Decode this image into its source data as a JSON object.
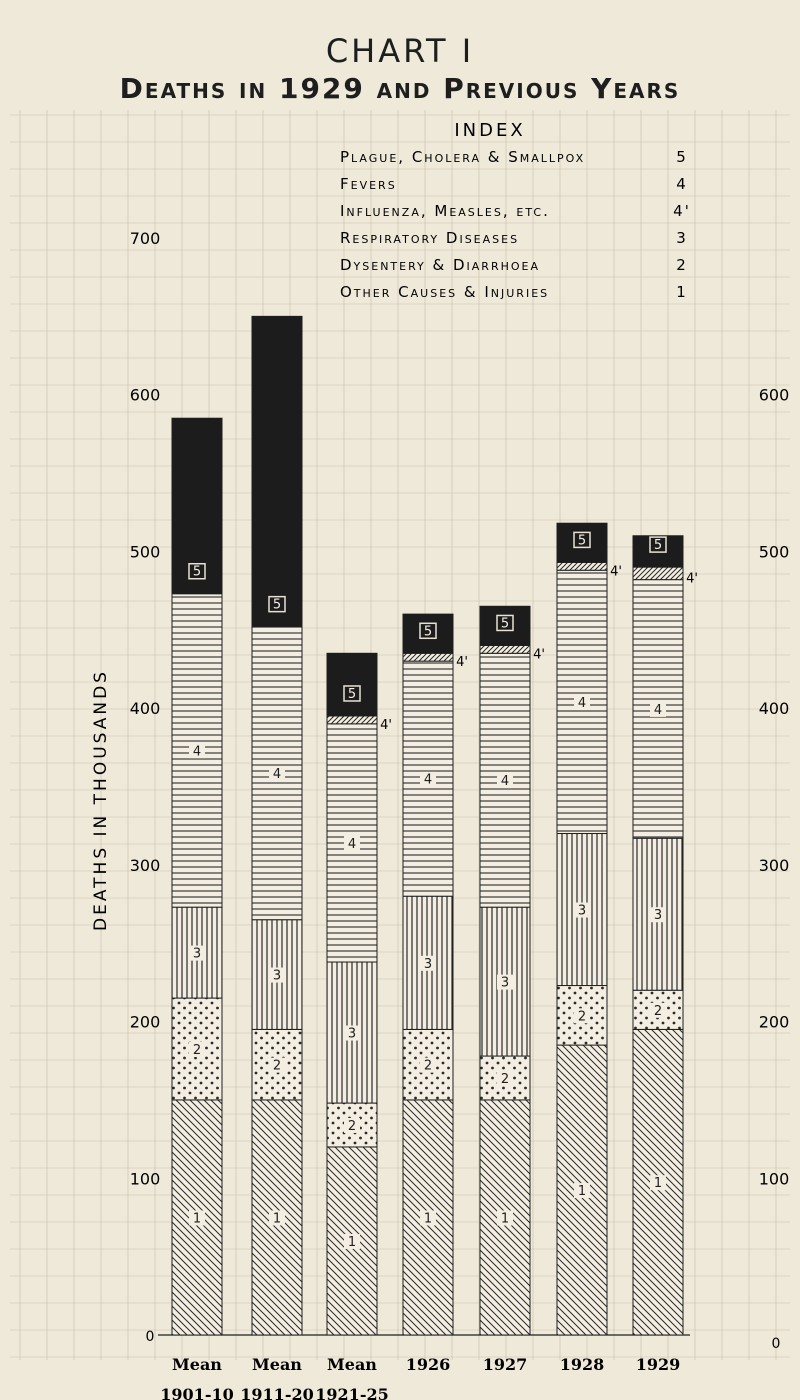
{
  "title": "CHART I",
  "subtitle": "Deaths in 1929 and Previous Years",
  "chart_data": {
    "type": "bar",
    "stacked": true,
    "ylabel": "DEATHS IN THOUSANDS",
    "ylim": [
      0,
      700
    ],
    "yticks_left": [
      "100",
      "200",
      "300",
      "400",
      "500",
      "600",
      "700"
    ],
    "yticks_right": [
      "100",
      "200",
      "300",
      "400",
      "500",
      "600"
    ],
    "zero_label": "0",
    "categories": [
      [
        "Mean",
        "1901-10"
      ],
      [
        "Mean",
        "1911-20"
      ],
      [
        "Mean",
        "1921-25"
      ],
      [
        "1926"
      ],
      [
        "1927"
      ],
      [
        "1928"
      ],
      [
        "1929"
      ]
    ],
    "index_title": "INDEX",
    "index": [
      {
        "label": "Plague, Cholera & Smallpox",
        "code": "5"
      },
      {
        "label": "Fevers",
        "code": "4"
      },
      {
        "label": "Influenza, Measles, etc.",
        "code": "4'"
      },
      {
        "label": "Respiratory Diseases",
        "code": "3"
      },
      {
        "label": "Dysentery & Diarrhoea",
        "code": "2"
      },
      {
        "label": "Other Causes & Injuries",
        "code": "1"
      }
    ],
    "series": [
      {
        "code": "1",
        "values": [
          150,
          150,
          120,
          150,
          150,
          185,
          195
        ]
      },
      {
        "code": "2",
        "values": [
          65,
          45,
          28,
          45,
          28,
          38,
          25
        ]
      },
      {
        "code": "3",
        "values": [
          58,
          70,
          90,
          85,
          95,
          97,
          97
        ]
      },
      {
        "code": "4",
        "values": [
          200,
          187,
          152,
          150,
          162,
          168,
          165
        ]
      },
      {
        "code": "4'",
        "values": [
          0,
          0,
          5,
          5,
          5,
          5,
          8
        ]
      },
      {
        "code": "5",
        "values": [
          112,
          198,
          40,
          25,
          25,
          25,
          20
        ]
      }
    ]
  }
}
